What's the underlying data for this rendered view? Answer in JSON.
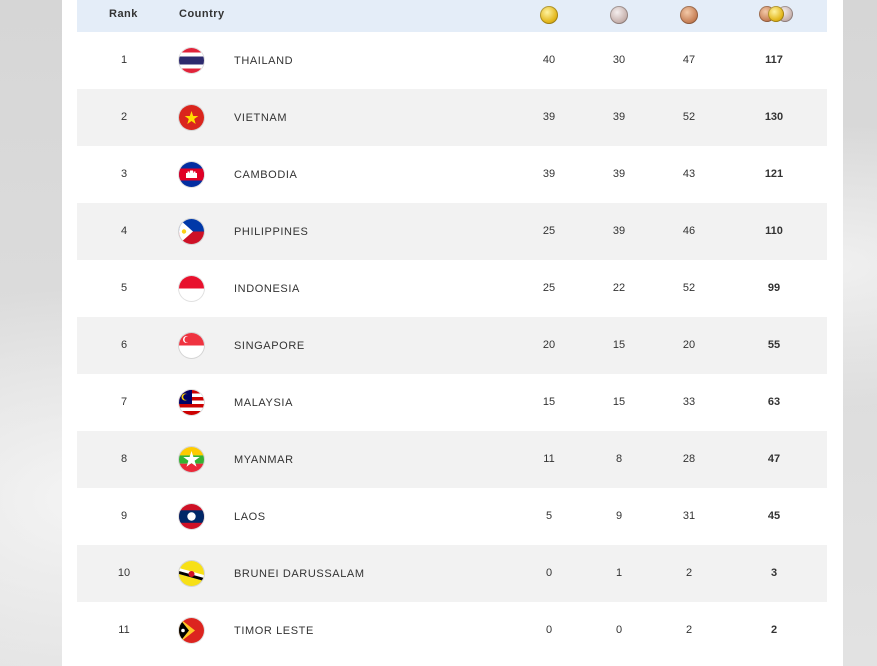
{
  "header": {
    "rank_label": "Rank",
    "country_label": "Country",
    "gold_icon": "gold-medal-icon",
    "silver_icon": "silver-medal-icon",
    "bronze_icon": "bronze-medal-icon",
    "total_icon": "total-medals-icon"
  },
  "colors": {
    "header_bg": "#e4edf8",
    "alt_row_bg": "#f2f2f2"
  },
  "rows": [
    {
      "rank": "1",
      "country": "THAILAND",
      "gold": "40",
      "silver": "30",
      "bronze": "47",
      "total": "117"
    },
    {
      "rank": "2",
      "country": "VIETNAM",
      "gold": "39",
      "silver": "39",
      "bronze": "52",
      "total": "130"
    },
    {
      "rank": "3",
      "country": "CAMBODIA",
      "gold": "39",
      "silver": "39",
      "bronze": "43",
      "total": "121"
    },
    {
      "rank": "4",
      "country": "PHILIPPINES",
      "gold": "25",
      "silver": "39",
      "bronze": "46",
      "total": "110"
    },
    {
      "rank": "5",
      "country": "INDONESIA",
      "gold": "25",
      "silver": "22",
      "bronze": "52",
      "total": "99"
    },
    {
      "rank": "6",
      "country": "SINGAPORE",
      "gold": "20",
      "silver": "15",
      "bronze": "20",
      "total": "55"
    },
    {
      "rank": "7",
      "country": "MALAYSIA",
      "gold": "15",
      "silver": "15",
      "bronze": "33",
      "total": "63"
    },
    {
      "rank": "8",
      "country": "MYANMAR",
      "gold": "11",
      "silver": "8",
      "bronze": "28",
      "total": "47"
    },
    {
      "rank": "9",
      "country": "LAOS",
      "gold": "5",
      "silver": "9",
      "bronze": "31",
      "total": "45"
    },
    {
      "rank": "10",
      "country": "BRUNEI DARUSSALAM",
      "gold": "0",
      "silver": "1",
      "bronze": "2",
      "total": "3"
    },
    {
      "rank": "11",
      "country": "TIMOR LESTE",
      "gold": "0",
      "silver": "0",
      "bronze": "2",
      "total": "2"
    }
  ]
}
